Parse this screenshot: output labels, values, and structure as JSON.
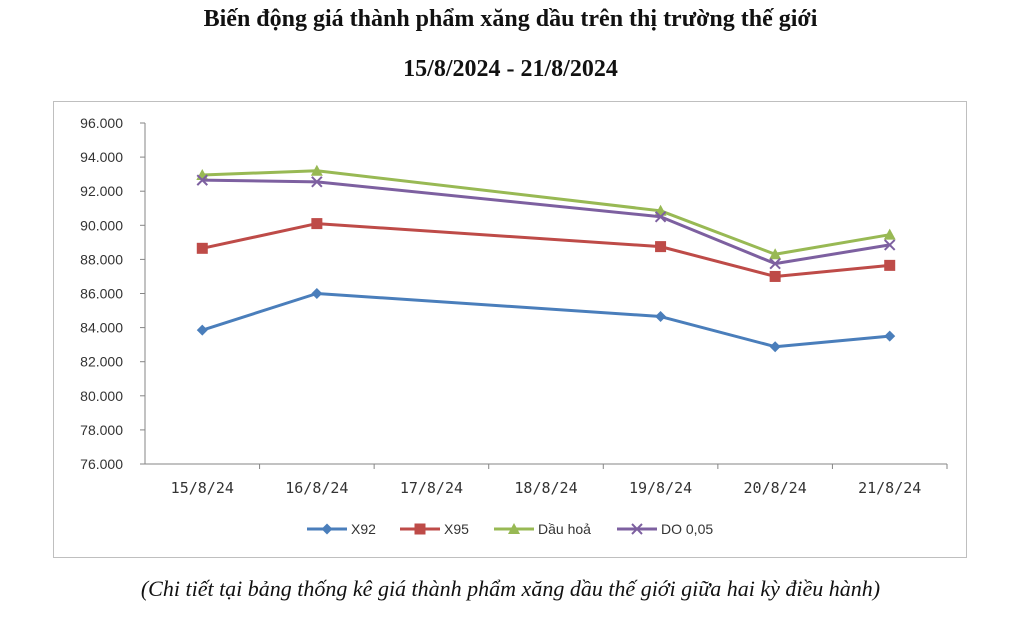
{
  "title_line1": "Biến động giá thành phẩm xăng dầu trên thị trường thế giới",
  "title_line2": "15/8/2024 - 21/8/2024",
  "caption": "(Chi tiết tại bảng thống kê giá thành phẩm xăng dầu thế giới giữa hai kỳ điều hành)",
  "chart_data": {
    "type": "line",
    "title": "Biến động giá thành phẩm xăng dầu trên thị trường thế giới 15/8/2024 - 21/8/2024",
    "xlabel": "",
    "ylabel": "",
    "categories": [
      "15/8/24",
      "16/8/24",
      "17/8/24",
      "18/8/24",
      "19/8/24",
      "20/8/24",
      "21/8/24"
    ],
    "ylim": [
      76000,
      96000
    ],
    "y_ticks": [
      "76.000",
      "78.000",
      "80.000",
      "82.000",
      "84.000",
      "86.000",
      "88.000",
      "90.000",
      "92.000",
      "94.000",
      "96.000"
    ],
    "grid": false,
    "legend_position": "bottom",
    "series": [
      {
        "name": "X92",
        "color": "#4a7ebb",
        "marker": "diamond",
        "values": [
          83850,
          86000,
          null,
          null,
          84650,
          82880,
          83500
        ]
      },
      {
        "name": "X95",
        "color": "#be4b48",
        "marker": "square",
        "values": [
          88650,
          90100,
          null,
          null,
          88750,
          87000,
          87650
        ]
      },
      {
        "name": "Dầu hoả",
        "color": "#98b954",
        "marker": "triangle",
        "values": [
          92950,
          93200,
          null,
          null,
          90850,
          88300,
          89450
        ]
      },
      {
        "name": "DO 0,05",
        "color": "#7d60a0",
        "marker": "x",
        "values": [
          92650,
          92550,
          null,
          null,
          90500,
          87750,
          88850
        ]
      }
    ]
  }
}
